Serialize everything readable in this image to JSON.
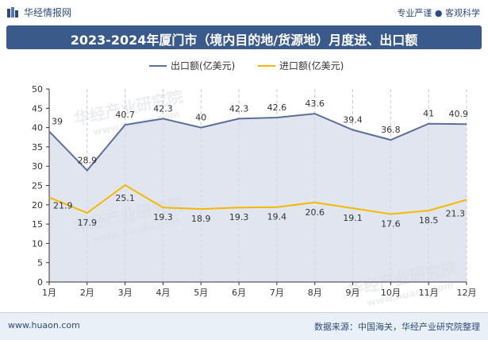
{
  "header": {
    "brand": "华经情报网",
    "slogan": "专业严谨 ● 客观科学",
    "title": "2023-2024年厦门市（境内目的地/货源地）月度进、出口额"
  },
  "footer": {
    "website": "www.huaon.com",
    "source": "数据来源：中国海关，华经产业研究院整理"
  },
  "watermark": {
    "text": "华经产业研究院",
    "url": "www.huaon.com"
  },
  "colors": {
    "export": "#5b6f9a",
    "import": "#f5b800",
    "area": "#d5dcea",
    "title_bg": "#3b5a8c"
  },
  "chart_data": {
    "type": "line",
    "categories": [
      "1月",
      "2月",
      "3月",
      "4月",
      "5月",
      "6月",
      "7月",
      "8月",
      "9月",
      "10月",
      "11月",
      "12月"
    ],
    "series": [
      {
        "name": "出口额(亿美元)",
        "values": [
          39,
          28.9,
          40.7,
          42.3,
          40,
          42.3,
          42.6,
          43.6,
          39.4,
          36.8,
          41,
          40.9
        ]
      },
      {
        "name": "进口额(亿美元)",
        "values": [
          21.9,
          17.9,
          25.1,
          19.3,
          18.9,
          19.3,
          19.4,
          20.6,
          19.1,
          17.6,
          18.5,
          21.3
        ]
      }
    ],
    "ylim": [
      0,
      50
    ],
    "yticks": [
      0,
      5,
      10,
      15,
      20,
      25,
      30,
      35,
      40,
      45,
      50
    ],
    "legend": "top-center",
    "grid": "vertical-dashed"
  }
}
